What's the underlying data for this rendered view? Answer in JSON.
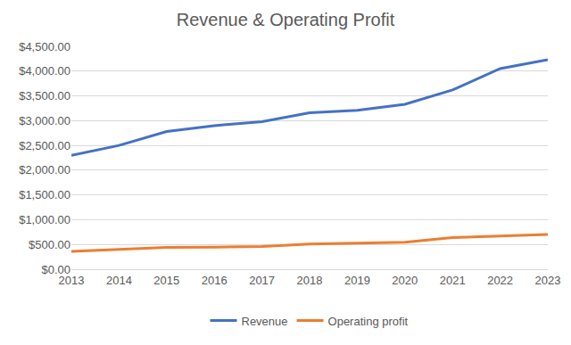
{
  "chart_data": {
    "type": "line",
    "title": "Revenue & Operating Profit",
    "categories": [
      "2013",
      "2014",
      "2015",
      "2016",
      "2017",
      "2018",
      "2019",
      "2020",
      "2021",
      "2022",
      "2023"
    ],
    "series": [
      {
        "name": "Revenue",
        "color": "#4472c4",
        "values": [
          2300,
          2500,
          2780,
          2900,
          2980,
          3160,
          3210,
          3330,
          3620,
          4050,
          4230
        ]
      },
      {
        "name": "Operating profit",
        "color": "#ed7d31",
        "values": [
          360,
          400,
          440,
          445,
          460,
          510,
          525,
          545,
          640,
          670,
          700
        ]
      }
    ],
    "ylim": [
      0,
      4500
    ],
    "yticks": [
      {
        "value": 0,
        "label": "$0.00"
      },
      {
        "value": 500,
        "label": "$500.00"
      },
      {
        "value": 1000,
        "label": "$1,000.00"
      },
      {
        "value": 1500,
        "label": "$1,500.00"
      },
      {
        "value": 2000,
        "label": "$2,000.00"
      },
      {
        "value": 2500,
        "label": "$2,500.00"
      },
      {
        "value": 3000,
        "label": "$3,000.00"
      },
      {
        "value": 3500,
        "label": "$3,500.00"
      },
      {
        "value": 4000,
        "label": "$4,000.00"
      },
      {
        "value": 4500,
        "label": "$4,500.00"
      }
    ],
    "grid": true,
    "legend": "bottom"
  }
}
